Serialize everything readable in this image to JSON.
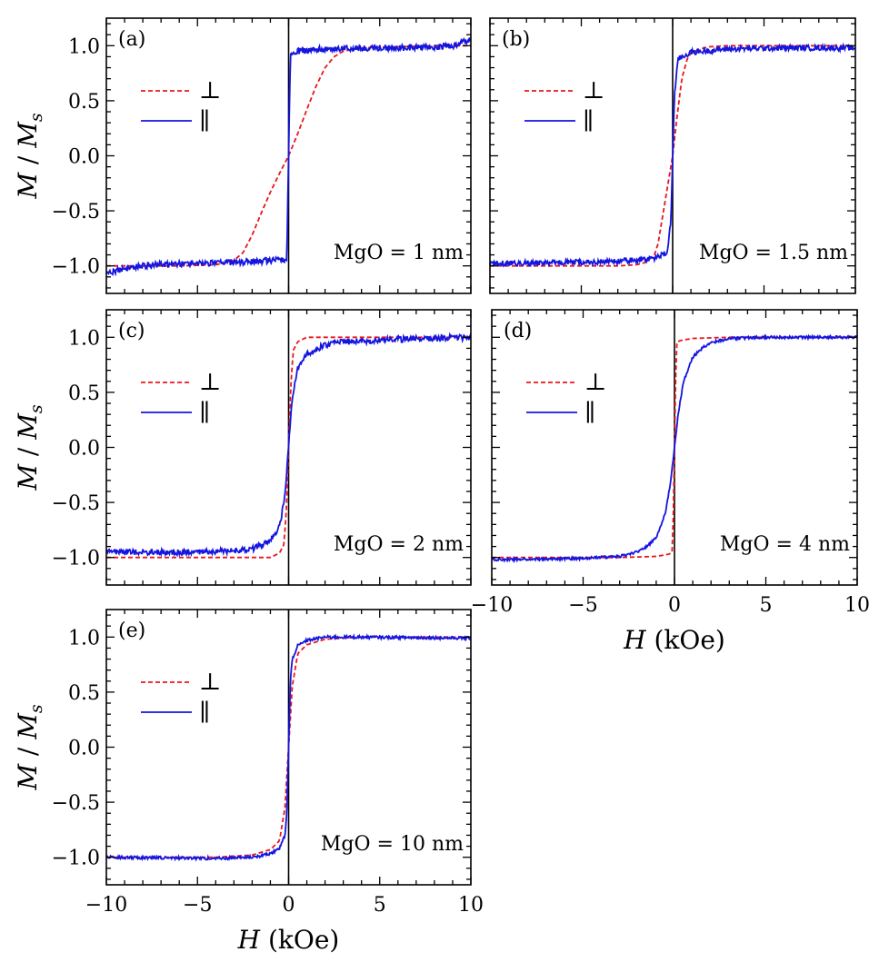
{
  "colors": {
    "perpendicular": "#e8171b",
    "parallel": "#1515e0",
    "axis": "#000000"
  },
  "chart_data": [
    {
      "type": "line",
      "panel_label": "(a)",
      "annotation": "MgO = 1 nm",
      "legend": [
        "⊥",
        "∥"
      ],
      "legend_position": "upper-left",
      "xlim": [
        -10,
        10
      ],
      "ylim": [
        -1.25,
        1.25
      ],
      "y_ticks": [
        "1.0",
        "0.5",
        "0.0",
        "−0.5",
        "−1.0"
      ],
      "x_ticks": [],
      "xlabel": "",
      "ylabel": "M / Ms",
      "series": [
        {
          "name": "⊥",
          "style": "dashed",
          "x": [
            -10,
            -8,
            -6,
            -4,
            -3,
            -2.5,
            -2,
            -1.5,
            -1,
            -0.5,
            0,
            0.5,
            1,
            1.5,
            2,
            2.5,
            3,
            4,
            6,
            8,
            10
          ],
          "y": [
            -1.0,
            -1.0,
            -1.0,
            -0.99,
            -0.95,
            -0.88,
            -0.72,
            -0.52,
            -0.33,
            -0.16,
            0.0,
            0.2,
            0.42,
            0.63,
            0.8,
            0.9,
            0.95,
            0.98,
            0.99,
            1.0,
            1.0
          ]
        },
        {
          "name": "∥",
          "style": "solid",
          "noise": 0.028,
          "x": [
            -10,
            -8,
            -6,
            -4,
            -2,
            -1,
            -0.1,
            0.1,
            1,
            2,
            4,
            6,
            8,
            9,
            10
          ],
          "y": [
            -1.06,
            -1.0,
            -0.98,
            -0.97,
            -0.96,
            -0.95,
            -0.94,
            0.94,
            0.96,
            0.97,
            0.98,
            0.98,
            0.99,
            1.0,
            1.06
          ]
        }
      ]
    },
    {
      "type": "line",
      "panel_label": "(b)",
      "annotation": "MgO = 1.5 nm",
      "legend": [
        "⊥",
        "∥"
      ],
      "legend_position": "upper-left",
      "xlim": [
        -10,
        10
      ],
      "ylim": [
        -1.25,
        1.25
      ],
      "y_ticks": [],
      "x_ticks": [],
      "xlabel": "",
      "ylabel": "",
      "series": [
        {
          "name": "⊥",
          "style": "dashed",
          "x": [
            -10,
            -6,
            -3,
            -2,
            -1.5,
            -1,
            -0.8,
            -0.5,
            -0.2,
            0,
            0.2,
            0.5,
            0.8,
            1,
            1.5,
            2,
            3,
            6,
            10
          ],
          "y": [
            -1.0,
            -1.0,
            -1.0,
            -0.99,
            -0.97,
            -0.9,
            -0.8,
            -0.5,
            -0.2,
            0.0,
            0.3,
            0.7,
            0.88,
            0.93,
            0.97,
            0.99,
            1.0,
            1.0,
            1.0
          ]
        },
        {
          "name": "∥",
          "style": "solid",
          "noise": 0.025,
          "x": [
            -10,
            -6,
            -3,
            -1,
            -0.3,
            -0.1,
            0.1,
            0.3,
            1,
            3,
            6,
            10
          ],
          "y": [
            -0.98,
            -0.97,
            -0.96,
            -0.93,
            -0.88,
            -0.6,
            0.55,
            0.88,
            0.94,
            0.97,
            0.98,
            0.98
          ]
        }
      ]
    },
    {
      "type": "line",
      "panel_label": "(c)",
      "annotation": "MgO = 2 nm",
      "legend": [
        "⊥",
        "∥"
      ],
      "legend_position": "upper-left",
      "xlim": [
        -10,
        10
      ],
      "ylim": [
        -1.25,
        1.25
      ],
      "y_ticks": [
        "1.0",
        "0.5",
        "0.0",
        "−0.5",
        "−1.0"
      ],
      "x_ticks": [],
      "xlabel": "",
      "ylabel": "M / Ms",
      "series": [
        {
          "name": "⊥",
          "style": "dashed",
          "x": [
            -10,
            -4,
            -1,
            -0.5,
            -0.25,
            -0.1,
            0,
            0.1,
            0.25,
            0.5,
            1,
            4,
            10
          ],
          "y": [
            -1.0,
            -1.0,
            -1.0,
            -0.96,
            -0.88,
            -0.5,
            0.0,
            0.5,
            0.88,
            0.96,
            1.0,
            1.0,
            1.0
          ]
        },
        {
          "name": "∥",
          "style": "solid",
          "noise": 0.028,
          "x": [
            -10,
            -6,
            -3,
            -2,
            -1,
            -0.5,
            -0.2,
            0,
            0.2,
            0.5,
            1,
            2,
            3,
            6,
            10
          ],
          "y": [
            -0.95,
            -0.95,
            -0.94,
            -0.92,
            -0.85,
            -0.72,
            -0.45,
            0.0,
            0.45,
            0.72,
            0.85,
            0.93,
            0.96,
            0.98,
            1.0
          ]
        }
      ]
    },
    {
      "type": "line",
      "panel_label": "(d)",
      "annotation": "MgO = 4 nm",
      "legend": [
        "⊥",
        "∥"
      ],
      "legend_position": "upper-left",
      "xlim": [
        -10,
        10
      ],
      "ylim": [
        -1.25,
        1.25
      ],
      "y_ticks": [],
      "x_ticks": [
        "−10",
        "−5",
        "0",
        "5",
        "10"
      ],
      "xlabel": "H (kOe)",
      "ylabel": "",
      "series": [
        {
          "name": "⊥",
          "style": "dashed",
          "x": [
            -10,
            -3,
            -1,
            -0.3,
            -0.1,
            0,
            0.1,
            0.3,
            1,
            3,
            10
          ],
          "y": [
            -1.0,
            -1.0,
            -0.99,
            -0.97,
            -0.95,
            0.0,
            0.95,
            0.97,
            0.99,
            1.0,
            1.0
          ]
        },
        {
          "name": "∥",
          "style": "solid",
          "noise": 0.012,
          "x": [
            -10,
            -5,
            -3,
            -2,
            -1.5,
            -1,
            -0.5,
            -0.2,
            0,
            0.2,
            0.5,
            1,
            1.5,
            2,
            3,
            5,
            10
          ],
          "y": [
            -1.02,
            -1.01,
            -0.99,
            -0.95,
            -0.9,
            -0.82,
            -0.6,
            -0.3,
            0.0,
            0.3,
            0.6,
            0.82,
            0.9,
            0.95,
            0.99,
            1.0,
            1.0
          ]
        }
      ]
    },
    {
      "type": "line",
      "panel_label": "(e)",
      "annotation": "MgO = 10 nm",
      "legend": [
        "⊥",
        "∥"
      ],
      "legend_position": "upper-left",
      "xlim": [
        -10,
        10
      ],
      "ylim": [
        -1.25,
        1.25
      ],
      "y_ticks": [
        "1.0",
        "0.5",
        "0.0",
        "−0.5",
        "−1.0"
      ],
      "x_ticks": [
        "−10",
        "−5",
        "0",
        "5",
        "10"
      ],
      "xlabel": "H (kOe)",
      "ylabel": "M / Ms",
      "series": [
        {
          "name": "⊥",
          "style": "dashed",
          "x": [
            -10,
            -4,
            -2,
            -1,
            -0.5,
            -0.2,
            0,
            0.2,
            0.5,
            1,
            2,
            4,
            10
          ],
          "y": [
            -1.0,
            -1.0,
            -0.98,
            -0.93,
            -0.85,
            -0.55,
            0.0,
            0.55,
            0.85,
            0.93,
            0.98,
            1.0,
            1.0
          ]
        },
        {
          "name": "∥",
          "style": "solid",
          "noise": 0.013,
          "x": [
            -10,
            -4,
            -2,
            -1,
            -0.5,
            -0.2,
            -0.1,
            0,
            0.1,
            0.2,
            0.5,
            1,
            2,
            4,
            10
          ],
          "y": [
            -1.0,
            -1.01,
            -1.0,
            -0.97,
            -0.92,
            -0.8,
            -0.6,
            0.0,
            0.6,
            0.8,
            0.92,
            0.97,
            1.0,
            1.0,
            0.99
          ]
        }
      ]
    }
  ]
}
